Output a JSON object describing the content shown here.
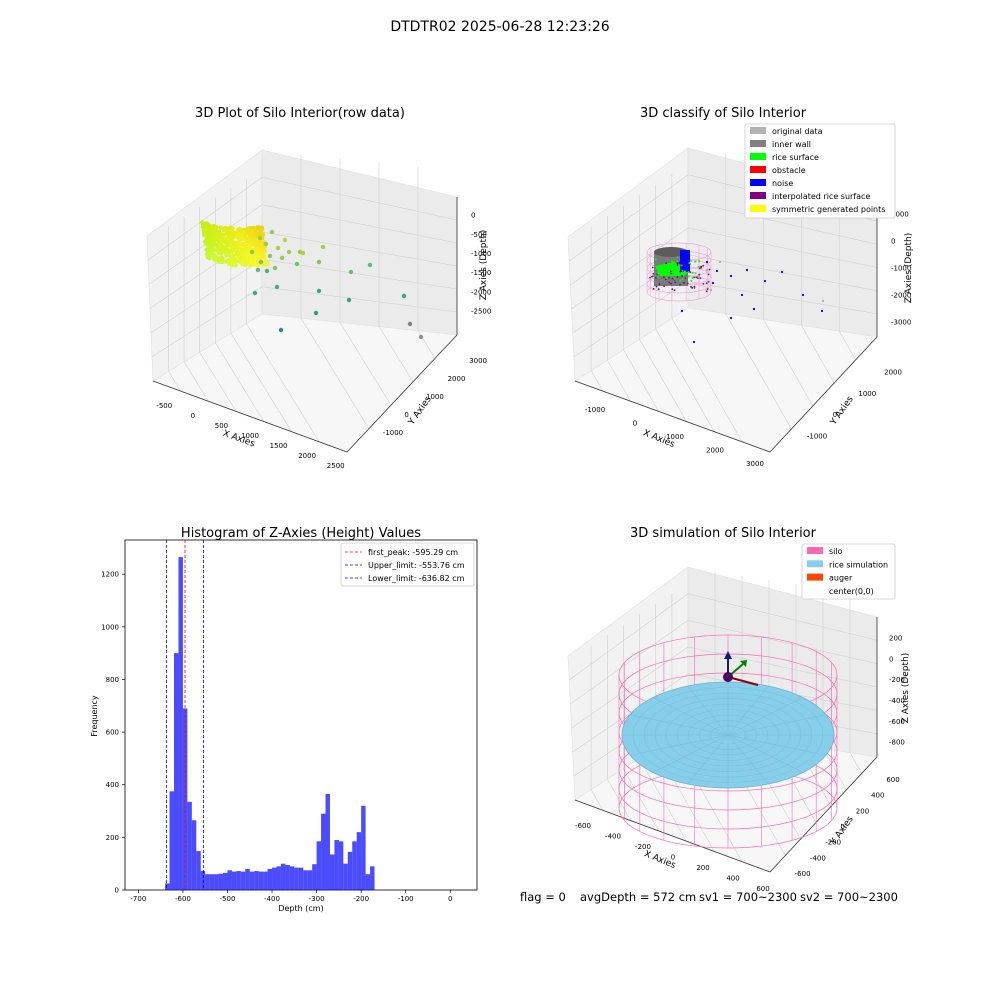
{
  "suptitle": "DTDTR02 2025-06-28 12:23:26",
  "panels": {
    "raw": {
      "title": "3D Plot of Silo Interior(row data)",
      "xlabel": "X Axies",
      "ylabel": "Y Axies",
      "zlabel": "Z Axies (Depth)",
      "xticks": [
        "-500",
        "0",
        "500",
        "1000",
        "1500",
        "2000",
        "2500"
      ],
      "yticks": [
        "-1000",
        "0",
        "1000",
        "2000",
        "3000"
      ],
      "zticks": [
        "0",
        "-500",
        "-1000",
        "-1500",
        "-2000",
        "-2500"
      ]
    },
    "classify": {
      "title": "3D classify of Silo Interior",
      "xlabel": "X Axies",
      "ylabel": "Y Axies",
      "zlabel": "Z Axies (Depth)",
      "xticks": [
        "-1000",
        "0",
        "1000",
        "2000",
        "3000"
      ],
      "yticks": [
        "-1000",
        "0",
        "1000",
        "2000"
      ],
      "zticks": [
        "1000",
        "0",
        "-1000",
        "-2000",
        "-3000"
      ],
      "legend": [
        {
          "label": "original data",
          "color": "#b3b3b3"
        },
        {
          "label": "inner wall",
          "color": "#808080"
        },
        {
          "label": "rice surface",
          "color": "#00ff00"
        },
        {
          "label": "obstacle",
          "color": "#ff0000"
        },
        {
          "label": "noise",
          "color": "#0000ff"
        },
        {
          "label": "interpolated rice surface",
          "color": "#800080"
        },
        {
          "label": "symmetric generated points",
          "color": "#ffff00"
        }
      ]
    },
    "simulation": {
      "title": "3D simulation of Silo Interior",
      "xlabel": "X Axies",
      "ylabel": "Y Axies",
      "zlabel": "Z Axies (Depth)",
      "xticks": [
        "-600",
        "-400",
        "-200",
        "0",
        "200",
        "400",
        "600"
      ],
      "yticks": [
        "-600",
        "-400",
        "-200",
        "0",
        "200",
        "400",
        "600"
      ],
      "zticks": [
        "200",
        "0",
        "-200",
        "-400",
        "-600",
        "-800"
      ],
      "legend": [
        {
          "label": "silo",
          "color": "#ff69b4"
        },
        {
          "label": "rice simulation",
          "color": "#87ceeb"
        },
        {
          "label": "auger",
          "color": "#ff4500"
        },
        {
          "label": "center(0,0)",
          "color": ""
        }
      ]
    }
  },
  "chart_data": [
    {
      "type": "scatter",
      "title": "3D Plot of Silo Interior(row data)",
      "xlabel": "X Axies",
      "ylabel": "Y Axies",
      "zlabel": "Z Axies (Depth)",
      "xlim": [
        -600,
        2600
      ],
      "ylim": [
        -1200,
        3100
      ],
      "zlim": [
        -2800,
        100
      ],
      "colormap": "viridis"
    },
    {
      "type": "scatter",
      "title": "3D classify of Silo Interior",
      "xlabel": "X Axies",
      "ylabel": "Y Axies",
      "zlabel": "Z Axies (Depth)",
      "xlim": [
        -1300,
        3100
      ],
      "ylim": [
        -1300,
        2500
      ],
      "zlim": [
        -3500,
        1200
      ]
    },
    {
      "type": "bar",
      "title": "Histogram of Z-Axies (Height) Values",
      "xlabel": "Depth (cm)",
      "ylabel": "Frequency",
      "xlim": [
        -730,
        60
      ],
      "ylim": [
        0,
        1330
      ],
      "xticks": [
        -700,
        -600,
        -500,
        -400,
        -300,
        -200,
        -100,
        0
      ],
      "yticks": [
        0,
        200,
        400,
        600,
        800,
        1000,
        1200
      ],
      "bin_width": 10,
      "bin_starts": [
        -640,
        -630,
        -620,
        -610,
        -600,
        -590,
        -580,
        -570,
        -560,
        -550,
        -540,
        -530,
        -520,
        -510,
        -500,
        -490,
        -480,
        -470,
        -460,
        -450,
        -440,
        -430,
        -420,
        -410,
        -400,
        -390,
        -380,
        -370,
        -360,
        -350,
        -340,
        -330,
        -320,
        -310,
        -300,
        -290,
        -280,
        -270,
        -260,
        -250,
        -240,
        -230,
        -220,
        -210,
        -200,
        -190,
        -180,
        -170,
        -160,
        -150,
        -140,
        -130,
        -120,
        -110,
        -100,
        -90,
        -80,
        -70,
        -60,
        -50,
        -40,
        -30,
        -20,
        -10
      ],
      "values": [
        25,
        375,
        900,
        1265,
        690,
        335,
        265,
        148,
        72,
        60,
        60,
        60,
        62,
        65,
        75,
        70,
        72,
        70,
        80,
        70,
        72,
        70,
        70,
        80,
        85,
        90,
        100,
        95,
        90,
        85,
        85,
        75,
        75,
        98,
        185,
        290,
        365,
        135,
        190,
        185,
        100,
        145,
        185,
        220,
        320,
        60,
        90,
        0,
        0,
        0,
        0,
        0,
        0,
        0,
        0,
        0,
        0,
        0,
        0,
        0,
        0,
        0,
        0,
        0
      ],
      "bar_color": "#0000ff",
      "lines": [
        {
          "name": "first_peak: -595.29 cm",
          "x": -595.29,
          "color": "#ff0000"
        },
        {
          "name": "Upper_limit: -553.76 cm",
          "x": -553.76,
          "color": "#0000ff"
        },
        {
          "name": "Lower_limit: -636.82 cm",
          "x": -636.82,
          "color": "#0000ff"
        }
      ],
      "legend_position": "upper right"
    },
    {
      "type": "scatter",
      "title": "3D simulation of Silo Interior",
      "xlabel": "X Axies",
      "ylabel": "Y Axies",
      "zlabel": "Z Axies (Depth)",
      "xlim": [
        -700,
        700
      ],
      "ylim": [
        -700,
        700
      ],
      "zlim": [
        -950,
        350
      ]
    }
  ],
  "status": {
    "flag": "flag = 0",
    "avg_depth": "avgDepth = 572 cm",
    "sv1": "sv1 = 700~2300",
    "sv2": "sv2 = 700~2300"
  }
}
